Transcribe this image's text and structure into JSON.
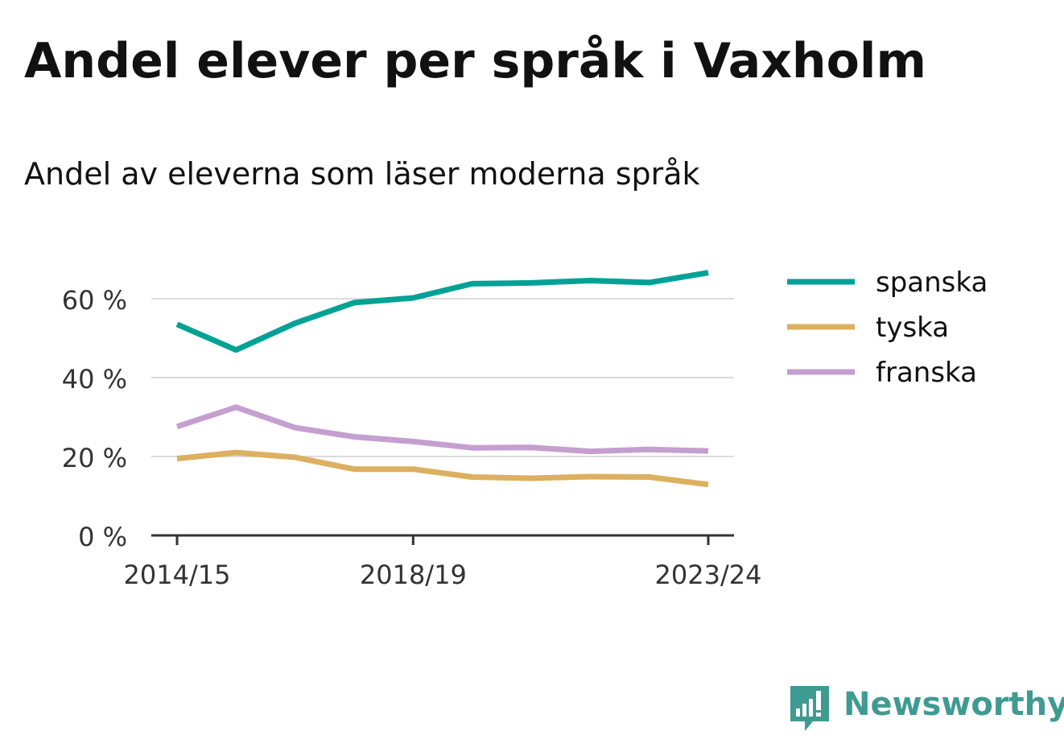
{
  "title": "Andel elever per språk i Vaxholm",
  "subtitle": "Andel av eleverna som läser moderna språk",
  "chart_data": {
    "type": "line",
    "x": [
      "2014/15",
      "2015/16",
      "2016/17",
      "2017/18",
      "2018/19",
      "2019/20",
      "2020/21",
      "2021/22",
      "2022/23",
      "2023/24"
    ],
    "x_tick_labels": [
      "2014/15",
      "2018/19",
      "2023/24"
    ],
    "y_ticks": [
      0,
      20,
      40,
      60
    ],
    "y_tick_labels": [
      "0 %",
      "20 %",
      "40 %",
      "60 %"
    ],
    "ylim": [
      0,
      67
    ],
    "grid": true,
    "legend_position": "right",
    "series": [
      {
        "name": "spanska",
        "color": "#00a296",
        "values": [
          53.5,
          47,
          53.8,
          59,
          60.2,
          63.8,
          64,
          64.6,
          64.1,
          66.6
        ]
      },
      {
        "name": "tyska",
        "color": "#dcb060",
        "values": [
          19.5,
          21,
          19.8,
          16.8,
          16.8,
          14.8,
          14.5,
          14.9,
          14.8,
          12.9
        ]
      },
      {
        "name": "franska",
        "color": "#c59fd0",
        "values": [
          27.6,
          32.5,
          27.3,
          25,
          23.8,
          22.2,
          22.3,
          21.3,
          21.8,
          21.4
        ]
      }
    ]
  },
  "brand": {
    "name": "Newsworthy",
    "color": "#3f9b91",
    "icon": "newsworthy-logo-icon"
  }
}
